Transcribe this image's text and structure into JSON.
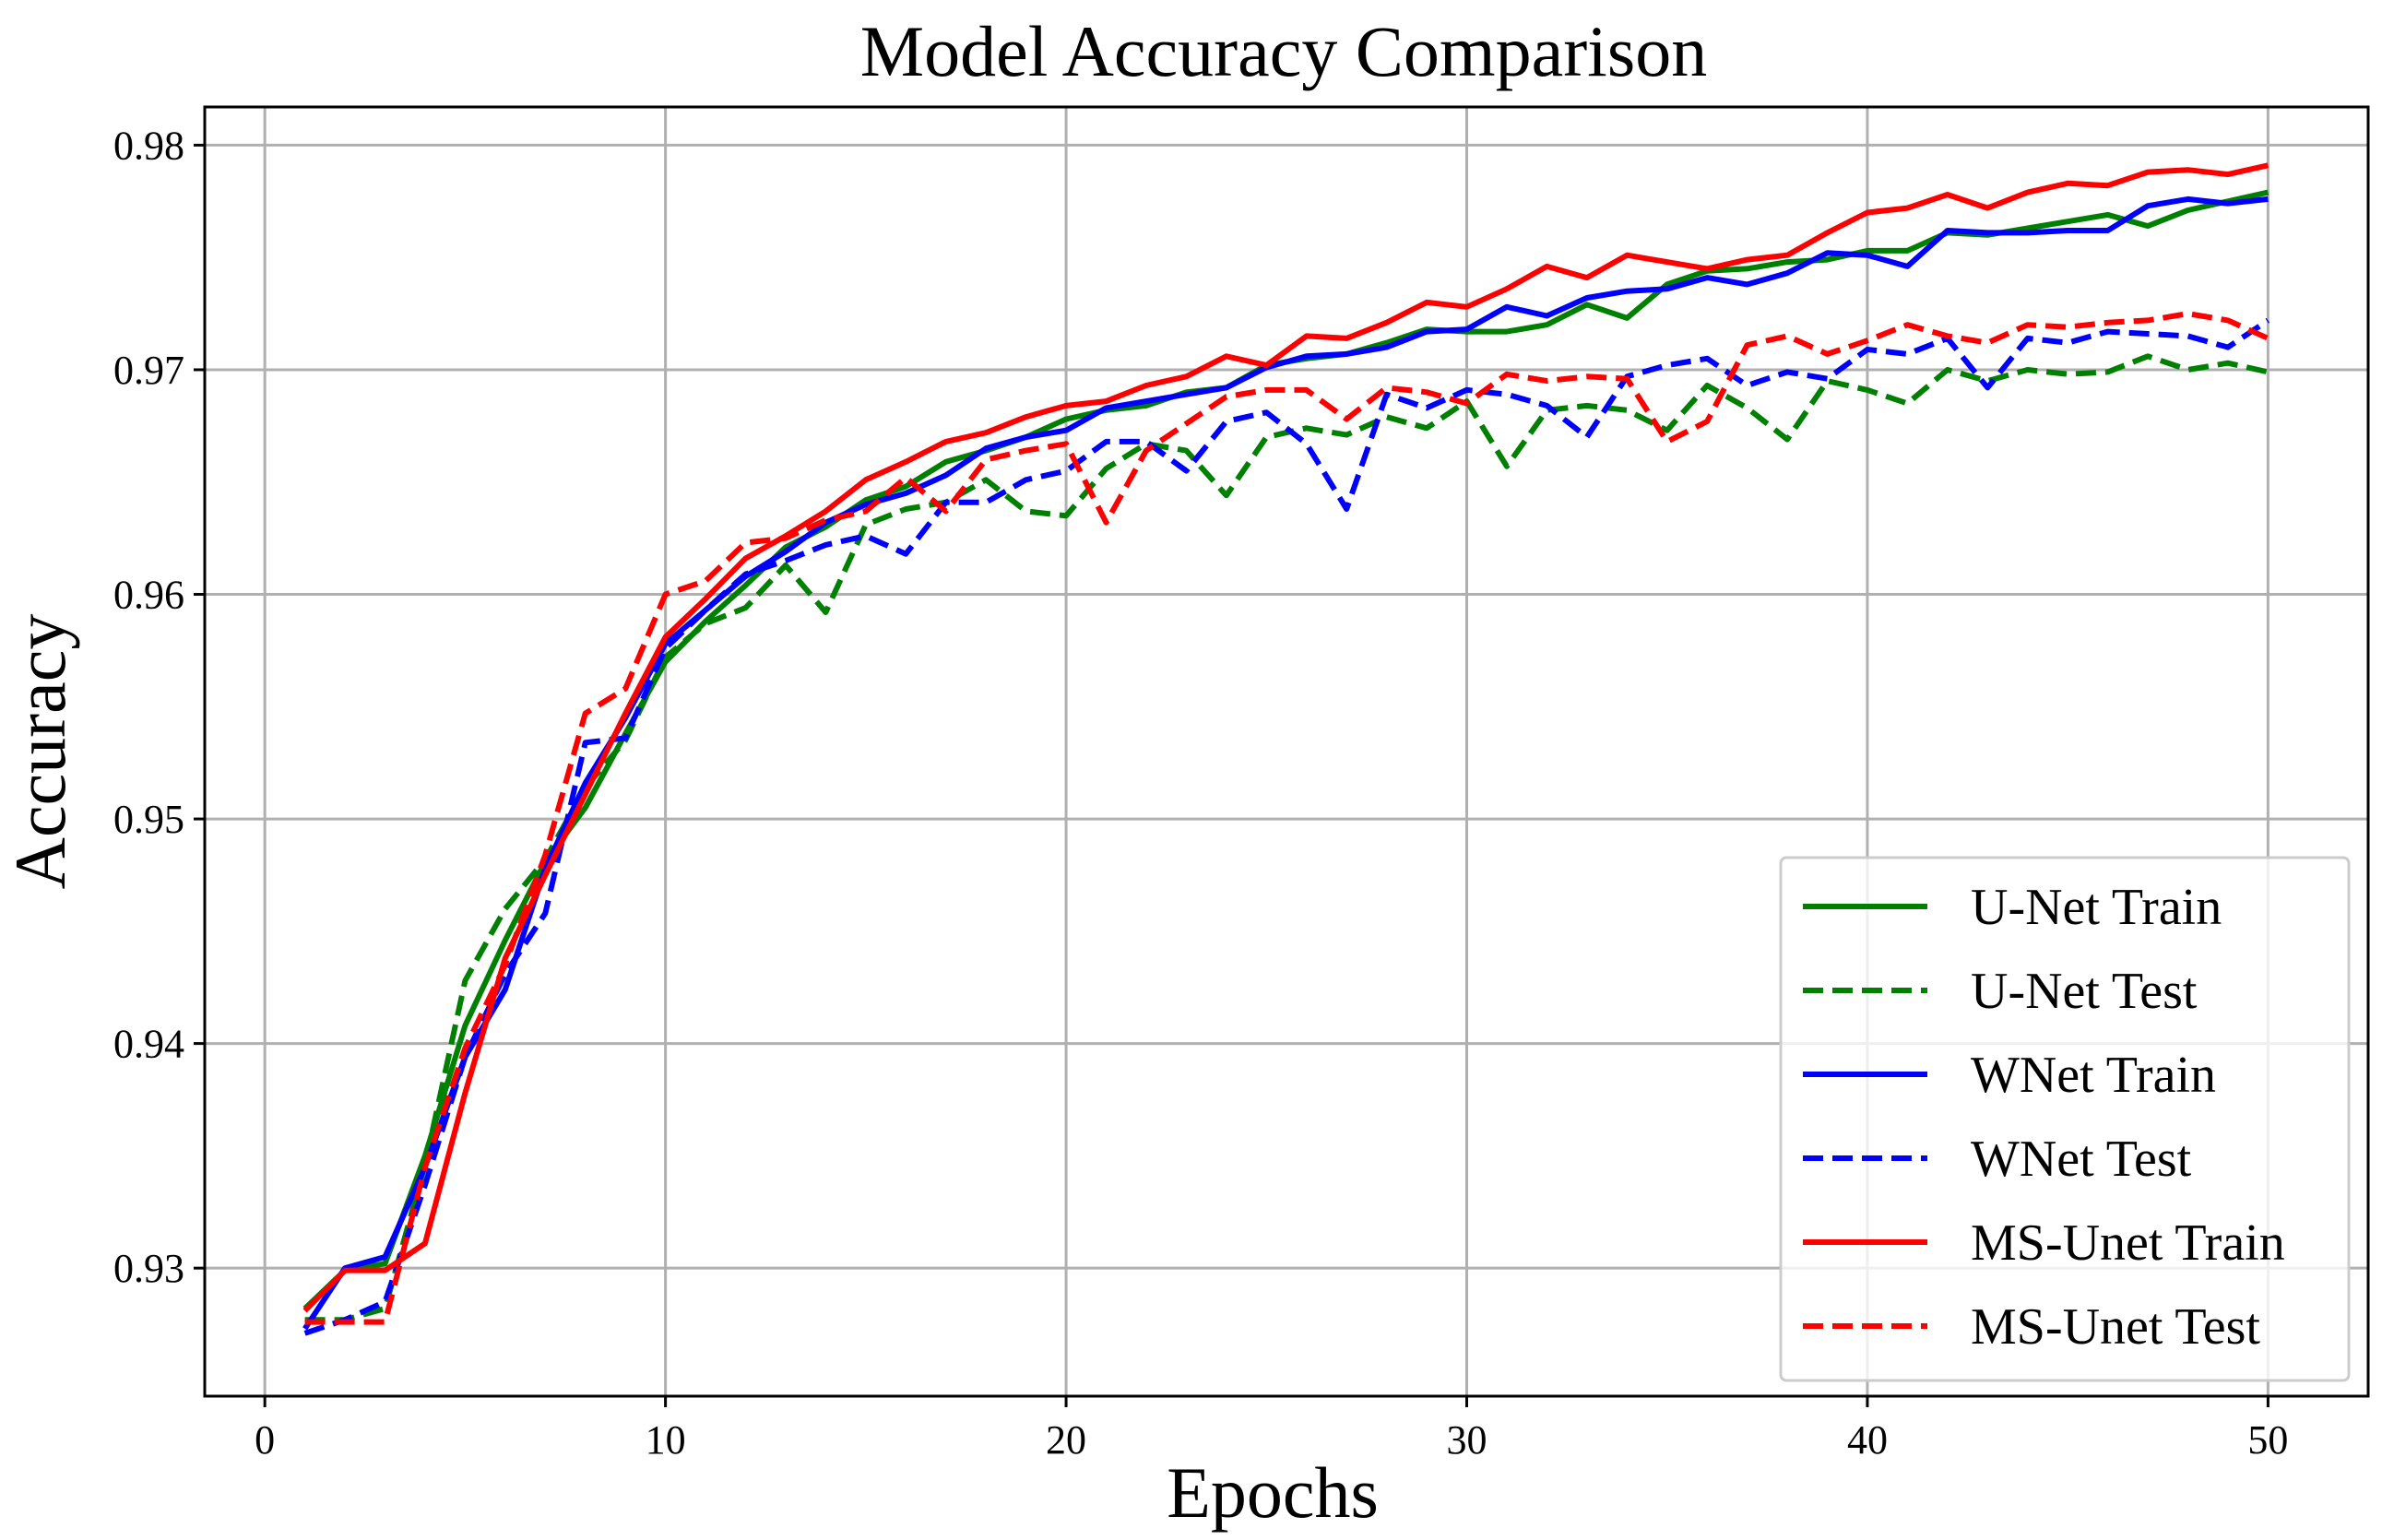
{
  "chart_data": {
    "type": "line",
    "title": "Model Accuracy Comparison",
    "xlabel": "Epochs",
    "ylabel": "Accuracy",
    "xlim": [
      -1.5,
      52.5
    ],
    "ylim": [
      0.9243,
      0.9817
    ],
    "xticks": [
      0,
      10,
      20,
      30,
      40,
      50
    ],
    "yticks": [
      0.93,
      0.94,
      0.95,
      0.96,
      0.97,
      0.98
    ],
    "xtick_labels": [
      "0",
      "10",
      "20",
      "30",
      "40",
      "50"
    ],
    "ytick_labels": [
      "0.93",
      "0.94",
      "0.95",
      "0.96",
      "0.97",
      "0.98"
    ],
    "grid": true,
    "legend_position": "lower-right",
    "x": [
      1,
      2,
      3,
      4,
      5,
      6,
      7,
      8,
      9,
      10,
      11,
      12,
      13,
      14,
      15,
      16,
      17,
      18,
      19,
      20,
      21,
      22,
      23,
      24,
      25,
      26,
      27,
      28,
      29,
      30,
      31,
      32,
      33,
      34,
      35,
      36,
      37,
      38,
      39,
      40,
      41,
      42,
      43,
      44,
      45,
      46,
      47,
      48,
      49,
      50
    ],
    "series": [
      {
        "name": "U-Net Train",
        "color": "#008000",
        "dash": "solid",
        "values": [
          0.9282,
          0.9299,
          0.9302,
          0.935,
          0.9408,
          0.9446,
          0.9481,
          0.9505,
          0.9538,
          0.957,
          0.9588,
          0.9604,
          0.9621,
          0.963,
          0.9642,
          0.9648,
          0.9659,
          0.9664,
          0.967,
          0.9678,
          0.9682,
          0.9684,
          0.969,
          0.9692,
          0.9702,
          0.9705,
          0.9707,
          0.9712,
          0.9718,
          0.9717,
          0.9717,
          0.972,
          0.9729,
          0.9723,
          0.9738,
          0.9744,
          0.9745,
          0.9748,
          0.9749,
          0.9753,
          0.9753,
          0.9761,
          0.976,
          0.9763,
          0.9766,
          0.9769,
          0.9764,
          0.9771,
          0.9775,
          0.9779
        ]
      },
      {
        "name": "U-Net Test",
        "color": "#008000",
        "dash": "dashed",
        "values": [
          0.9277,
          0.9277,
          0.9282,
          0.9346,
          0.9428,
          0.946,
          0.9482,
          0.9514,
          0.9535,
          0.9572,
          0.9587,
          0.9594,
          0.9613,
          0.9592,
          0.9631,
          0.9638,
          0.9641,
          0.9651,
          0.9637,
          0.9635,
          0.9656,
          0.9667,
          0.9664,
          0.9644,
          0.967,
          0.9674,
          0.9671,
          0.9679,
          0.9674,
          0.9686,
          0.9657,
          0.9682,
          0.9684,
          0.9682,
          0.9673,
          0.9693,
          0.9683,
          0.9669,
          0.9695,
          0.9691,
          0.9685,
          0.97,
          0.9695,
          0.97,
          0.9698,
          0.9699,
          0.9706,
          0.97,
          0.9703,
          0.9699
        ]
      },
      {
        "name": "WNet Train",
        "color": "#0000ff",
        "dash": "solid",
        "values": [
          0.9273,
          0.93,
          0.9305,
          0.9345,
          0.9394,
          0.9424,
          0.9478,
          0.9516,
          0.9545,
          0.9578,
          0.9593,
          0.9608,
          0.9619,
          0.9632,
          0.964,
          0.9645,
          0.9653,
          0.9665,
          0.967,
          0.9673,
          0.9683,
          0.9686,
          0.9689,
          0.9692,
          0.9701,
          0.9706,
          0.9707,
          0.971,
          0.9717,
          0.9718,
          0.9728,
          0.9724,
          0.9732,
          0.9735,
          0.9736,
          0.9741,
          0.9738,
          0.9743,
          0.9752,
          0.9751,
          0.9746,
          0.9762,
          0.9761,
          0.9761,
          0.9762,
          0.9762,
          0.9773,
          0.9776,
          0.9774,
          0.9776
        ]
      },
      {
        "name": "WNet Test",
        "color": "#0000ff",
        "dash": "dashed",
        "values": [
          0.9271,
          0.9277,
          0.9285,
          0.9337,
          0.9394,
          0.9431,
          0.9458,
          0.9534,
          0.9536,
          0.9576,
          0.9593,
          0.9609,
          0.9615,
          0.9622,
          0.9626,
          0.9618,
          0.9641,
          0.9641,
          0.9651,
          0.9655,
          0.9668,
          0.9668,
          0.9655,
          0.9677,
          0.9681,
          0.9667,
          0.9638,
          0.9689,
          0.9683,
          0.9691,
          0.9689,
          0.9684,
          0.967,
          0.9697,
          0.9702,
          0.9705,
          0.9693,
          0.9699,
          0.9696,
          0.9709,
          0.9707,
          0.9714,
          0.9692,
          0.9714,
          0.9712,
          0.9717,
          0.9716,
          0.9715,
          0.971,
          0.9722
        ]
      },
      {
        "name": "MS-Unet Train",
        "color": "#ff0000",
        "dash": "solid",
        "values": [
          0.9281,
          0.9299,
          0.9299,
          0.9311,
          0.9378,
          0.9438,
          0.9475,
          0.9511,
          0.9547,
          0.9581,
          0.9598,
          0.9616,
          0.9626,
          0.9637,
          0.9651,
          0.9659,
          0.9668,
          0.9672,
          0.9679,
          0.9684,
          0.9686,
          0.9693,
          0.9697,
          0.9706,
          0.9702,
          0.9715,
          0.9714,
          0.9721,
          0.973,
          0.9728,
          0.9736,
          0.9746,
          0.9741,
          0.9751,
          0.9748,
          0.9745,
          0.9749,
          0.9751,
          0.9761,
          0.977,
          0.9772,
          0.9778,
          0.9772,
          0.9779,
          0.9783,
          0.9782,
          0.9788,
          0.9789,
          0.9787,
          0.9791
        ]
      },
      {
        "name": "MS-Unet Test",
        "color": "#ff0000",
        "dash": "dashed",
        "values": [
          0.9276,
          0.9276,
          0.9276,
          0.9345,
          0.9398,
          0.9435,
          0.9484,
          0.9547,
          0.9558,
          0.96,
          0.9606,
          0.9623,
          0.9625,
          0.9633,
          0.9637,
          0.9652,
          0.9637,
          0.966,
          0.9664,
          0.9667,
          0.9632,
          0.9664,
          0.9676,
          0.9688,
          0.9691,
          0.9691,
          0.9678,
          0.9692,
          0.969,
          0.9685,
          0.9698,
          0.9695,
          0.9697,
          0.9696,
          0.9668,
          0.9677,
          0.9711,
          0.9715,
          0.9707,
          0.9713,
          0.972,
          0.9715,
          0.9712,
          0.972,
          0.9719,
          0.9721,
          0.9722,
          0.9725,
          0.9722,
          0.9714
        ]
      }
    ]
  }
}
